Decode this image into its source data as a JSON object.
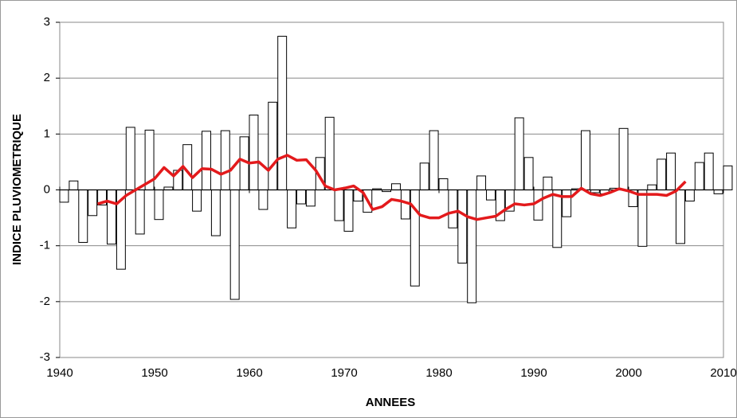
{
  "chart_data": {
    "type": "bar",
    "x_label": "ANNEES",
    "y_label": "INDICE  PLUVIOMETRIQUE",
    "x": [
      1940,
      1941,
      1942,
      1943,
      1944,
      1945,
      1946,
      1947,
      1948,
      1949,
      1950,
      1951,
      1952,
      1953,
      1954,
      1955,
      1956,
      1957,
      1958,
      1959,
      1960,
      1961,
      1962,
      1963,
      1964,
      1965,
      1966,
      1967,
      1968,
      1969,
      1970,
      1971,
      1972,
      1973,
      1974,
      1975,
      1976,
      1977,
      1978,
      1979,
      1980,
      1981,
      1982,
      1983,
      1984,
      1985,
      1986,
      1987,
      1988,
      1989,
      1990,
      1991,
      1992,
      1993,
      1994,
      1995,
      1996,
      1997,
      1998,
      1999,
      2000,
      2001,
      2002,
      2003,
      2004,
      2005,
      2006,
      2007,
      2008,
      2009,
      2010
    ],
    "series": [
      {
        "type": "bar",
        "color": "#ffffff",
        "values": [
          -0.22,
          0.16,
          -0.94,
          -0.46,
          -0.27,
          -0.97,
          -1.42,
          1.12,
          -0.79,
          1.07,
          -0.53,
          0.05,
          0.35,
          0.81,
          -0.38,
          1.05,
          -0.82,
          1.06,
          -1.96,
          0.95,
          1.34,
          -0.35,
          1.57,
          2.75,
          -0.68,
          -0.25,
          -0.29,
          0.58,
          1.3,
          -0.55,
          -0.74,
          -0.2,
          -0.4,
          0.02,
          -0.03,
          0.11,
          -0.52,
          -1.72,
          0.48,
          1.06,
          0.2,
          -0.68,
          -1.31,
          -2.02,
          0.25,
          -0.18,
          -0.55,
          -0.38,
          1.29,
          0.58,
          -0.54,
          0.23,
          -1.03,
          -0.48,
          0.02,
          1.06,
          -0.05,
          -0.07,
          0.03,
          1.1,
          -0.3,
          -1.01,
          0.09,
          0.55,
          0.66,
          -0.96,
          -0.2,
          0.49,
          0.66,
          -0.07,
          0.43
        ]
      },
      {
        "type": "line",
        "color": "#e31a1c",
        "x": [
          1944,
          1945,
          1946,
          1947,
          1948,
          1949,
          1950,
          1951,
          1952,
          1953,
          1954,
          1955,
          1956,
          1957,
          1958,
          1959,
          1960,
          1961,
          1962,
          1963,
          1964,
          1965,
          1966,
          1967,
          1968,
          1969,
          1970,
          1971,
          1972,
          1973,
          1974,
          1975,
          1976,
          1977,
          1978,
          1979,
          1980,
          1981,
          1982,
          1983,
          1984,
          1985,
          1986,
          1987,
          1988,
          1989,
          1990,
          1991,
          1992,
          1993,
          1994,
          1995,
          1996,
          1997,
          1998,
          1999,
          2000,
          2001,
          2002,
          2003,
          2004,
          2005,
          2006
        ],
        "values": [
          -0.25,
          -0.2,
          -0.25,
          -0.1,
          0.0,
          0.1,
          0.2,
          0.4,
          0.25,
          0.42,
          0.22,
          0.38,
          0.37,
          0.28,
          0.35,
          0.55,
          0.48,
          0.5,
          0.35,
          0.55,
          0.62,
          0.53,
          0.54,
          0.35,
          0.07,
          0.0,
          0.03,
          0.07,
          -0.05,
          -0.35,
          -0.3,
          -0.17,
          -0.2,
          -0.25,
          -0.45,
          -0.5,
          -0.5,
          -0.42,
          -0.38,
          -0.48,
          -0.53,
          -0.5,
          -0.47,
          -0.35,
          -0.25,
          -0.27,
          -0.25,
          -0.15,
          -0.08,
          -0.12,
          -0.12,
          0.03,
          -0.07,
          -0.1,
          -0.05,
          0.02,
          -0.02,
          -0.08,
          -0.08,
          -0.08,
          -0.1,
          -0.02,
          0.15
        ]
      }
    ],
    "xlim": [
      1940,
      2010
    ],
    "xticks": [
      1940,
      1950,
      1960,
      1970,
      1980,
      1990,
      2000,
      2010
    ],
    "ylim": [
      -3,
      3
    ],
    "yticks": [
      -3,
      -2,
      -1,
      0,
      1,
      2,
      3
    ],
    "grid": true
  }
}
